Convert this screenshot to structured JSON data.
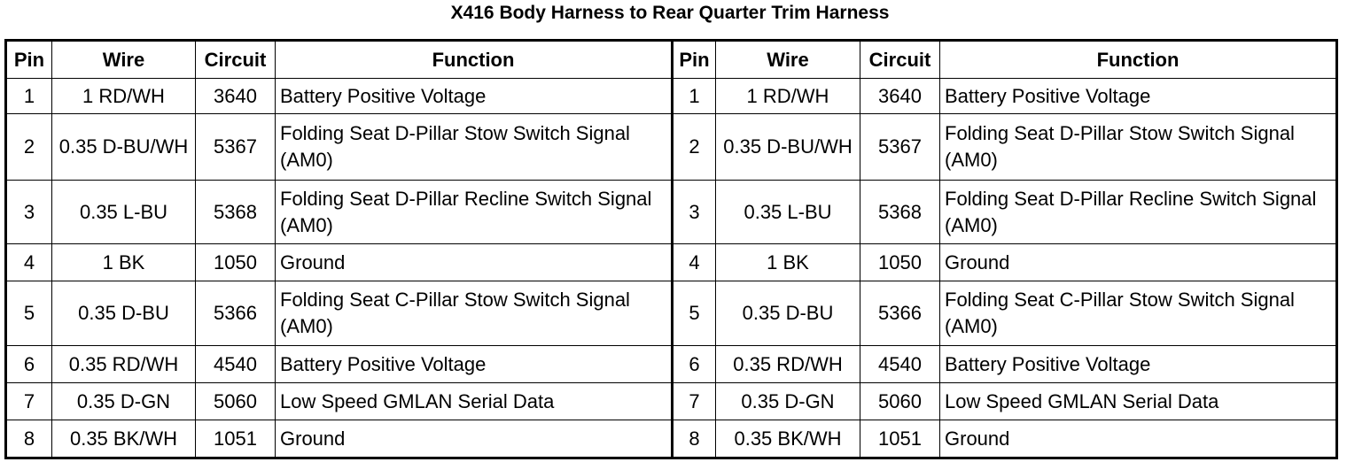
{
  "title": "X416 Body Harness to Rear Quarter Trim Harness",
  "table": {
    "headers": [
      "Pin",
      "Wire",
      "Circuit",
      "Function",
      "Pin",
      "Wire",
      "Circuit",
      "Function"
    ],
    "rows": [
      [
        "1",
        "1 RD/WH",
        "3640",
        "Battery Positive Voltage",
        "1",
        "1 RD/WH",
        "3640",
        "Battery Positive Voltage"
      ],
      [
        "2",
        "0.35 D-BU/WH",
        "5367",
        "Folding Seat D-Pillar Stow Switch Signal (AM0)",
        "2",
        "0.35 D-BU/WH",
        "5367",
        "Folding Seat D-Pillar Stow Switch Signal (AM0)"
      ],
      [
        "3",
        "0.35 L-BU",
        "5368",
        "Folding Seat D-Pillar Recline Switch Signal (AM0)",
        "3",
        "0.35 L-BU",
        "5368",
        "Folding Seat D-Pillar Recline Switch Signal (AM0)"
      ],
      [
        "4",
        "1 BK",
        "1050",
        "Ground",
        "4",
        "1 BK",
        "1050",
        "Ground"
      ],
      [
        "5",
        "0.35 D-BU",
        "5366",
        "Folding Seat C-Pillar Stow Switch Signal (AM0)",
        "5",
        "0.35 D-BU",
        "5366",
        "Folding Seat C-Pillar Stow Switch Signal (AM0)"
      ],
      [
        "6",
        "0.35 RD/WH",
        "4540",
        "Battery Positive Voltage",
        "6",
        "0.35 RD/WH",
        "4540",
        "Battery Positive Voltage"
      ],
      [
        "7",
        "0.35 D-GN",
        "5060",
        "Low Speed GMLAN Serial Data",
        "7",
        "0.35 D-GN",
        "5060",
        "Low Speed GMLAN Serial Data"
      ],
      [
        "8",
        "0.35 BK/WH",
        "1051",
        "Ground",
        "8",
        "0.35 BK/WH",
        "1051",
        "Ground"
      ]
    ]
  }
}
